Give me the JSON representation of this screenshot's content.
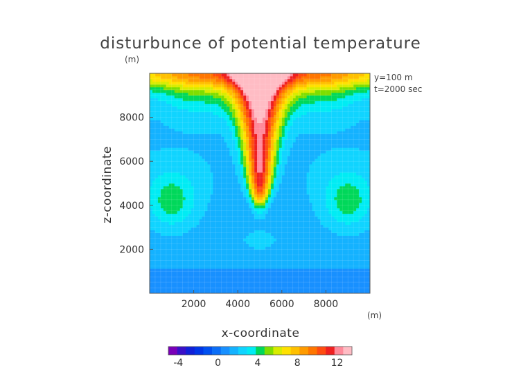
{
  "chart_data": {
    "type": "heatmap",
    "title": "disturbunce of potential temperature",
    "unit_top": "(m)",
    "annotations": [
      "y=100 m",
      "t=2000 sec"
    ],
    "xlabel": "x-coordinate",
    "ylabel": "z-coordinate",
    "x_unit": "(m)",
    "xlim": [
      0,
      10000
    ],
    "ylim": [
      0,
      10000
    ],
    "xticks": [
      2000,
      4000,
      6000,
      8000
    ],
    "yticks": [
      2000,
      4000,
      6000,
      8000
    ],
    "grid": true,
    "colorbar": {
      "range": [
        -5,
        13.5
      ],
      "tick_values": [
        -4,
        0,
        4,
        8,
        12
      ],
      "tick_labels": [
        "-4",
        "0",
        "4",
        "8",
        "12"
      ],
      "colors": [
        "#7a00b8",
        "#3a10c8",
        "#1020d8",
        "#0035e6",
        "#0050f0",
        "#0b6ef7",
        "#1890ff",
        "#14b2ff",
        "#10d4ff",
        "#00ecf4",
        "#00d85a",
        "#7ede00",
        "#d8ec00",
        "#ffe100",
        "#ffc000",
        "#ff9b00",
        "#ff7600",
        "#ff4c10",
        "#ef2020",
        "#ff8a9a",
        "#ffbcc4"
      ]
    },
    "features": {
      "background_level": 1.5,
      "top_warm_layer": "warm layer near z=10000 rising to about 13",
      "central_plume_x": 5000,
      "central_plume_bottom_z": 3600,
      "side_anomalies": [
        {
          "x": 1000,
          "z": 4200,
          "value": 4
        },
        {
          "x": 9000,
          "z": 4200,
          "value": 4
        }
      ]
    }
  }
}
